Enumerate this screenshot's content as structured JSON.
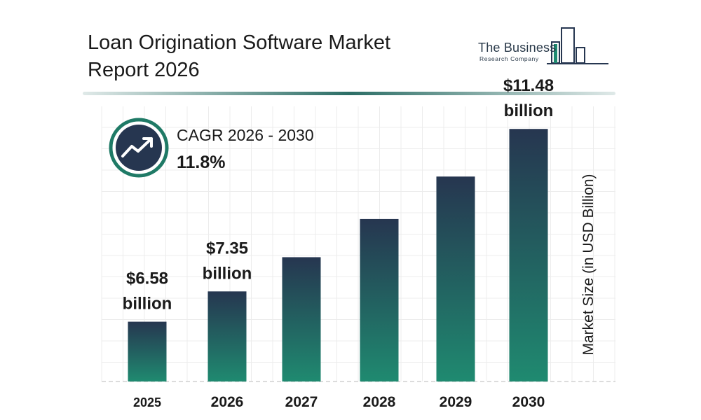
{
  "title": {
    "line1": "Loan Origination Software Market",
    "line2": "Report 2026"
  },
  "logo": {
    "name": "The Business",
    "sub": "Research Company",
    "icon": "building-bars-icon"
  },
  "cagr": {
    "label": "CAGR 2026 - 2030",
    "value": "11.8%",
    "icon": "trend-up-arrow-icon"
  },
  "colors": {
    "bar_top": "#263650",
    "bar_bottom": "#1f8a70",
    "divider": "#2c6e66",
    "circle_ring": "#1f7a66",
    "circle_fill": "#263650"
  },
  "chart_data": {
    "type": "bar",
    "categories": [
      "2025",
      "2026",
      "2027",
      "2028",
      "2029",
      "2030"
    ],
    "values": [
      6.58,
      7.35,
      8.22,
      9.19,
      10.27,
      11.48
    ],
    "data_labels": [
      [
        "$6.58",
        "billion"
      ],
      [
        "$7.35",
        "billion"
      ],
      null,
      null,
      null,
      [
        "$11.48",
        "billion"
      ]
    ],
    "ylabel": "Market Size (in USD Billion)",
    "ylim": [
      5.06,
      12.0
    ],
    "grid": true
  }
}
